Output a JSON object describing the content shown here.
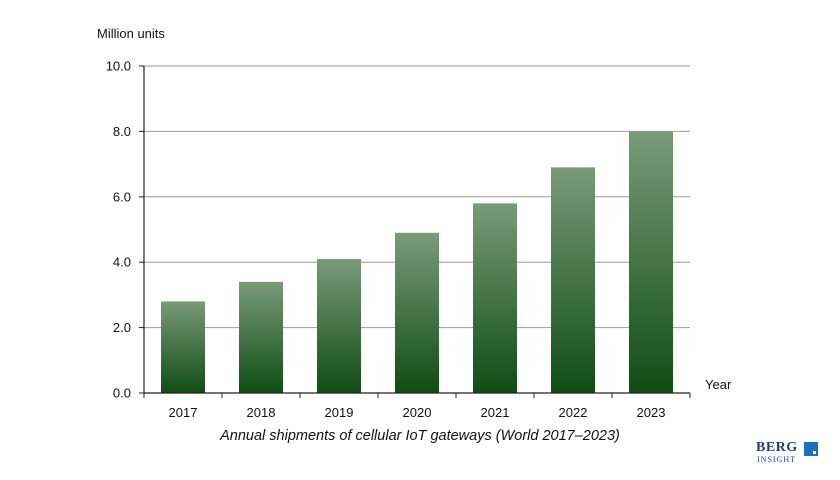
{
  "chart_data": {
    "type": "bar",
    "ylabel": "Million units",
    "xlabel": "Year",
    "caption": "Annual shipments of cellular IoT gateways (World 2017–2023)",
    "categories": [
      "2017",
      "2018",
      "2019",
      "2020",
      "2021",
      "2022",
      "2023"
    ],
    "values": [
      2.8,
      3.4,
      4.1,
      4.9,
      5.8,
      6.9,
      8.0
    ],
    "ylim": [
      0,
      10
    ],
    "yticks": [
      "0.0",
      "2.0",
      "4.0",
      "6.0",
      "8.0",
      "10.0"
    ],
    "grid": true,
    "colors": {
      "bar_top": "#7a9a7a",
      "bar_bottom": "#0f4d14",
      "grid": "#999999"
    }
  },
  "branding": {
    "logo_line1": "BERG",
    "logo_line2": "INSIGHT"
  }
}
